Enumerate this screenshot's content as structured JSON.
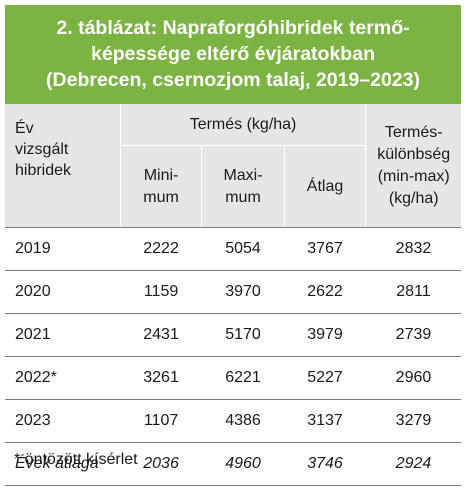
{
  "title": {
    "line1": "2. táblázat: Napraforgóhibridek termő-",
    "line2": "képessége eltérő évjáratokban",
    "line3": "(Debrecen, csernozjom talaj, 2019–2023)"
  },
  "header": {
    "col0": [
      "Év",
      "vizsgált",
      "hibridek"
    ],
    "group": "Termés (kg/ha)",
    "min": [
      "Mini-",
      "mum"
    ],
    "max": [
      "Maxi-",
      "mum"
    ],
    "avg": "Átlag",
    "diff": [
      "Termés-",
      "különbség",
      "(min-max)",
      "(kg/ha)"
    ]
  },
  "rows": [
    {
      "year": "2019",
      "min": "2222",
      "max": "5054",
      "avg": "3767",
      "diff": "2832"
    },
    {
      "year": "2020",
      "min": "1159",
      "max": "3970",
      "avg": "2622",
      "diff": "2811"
    },
    {
      "year": "2021",
      "min": "2431",
      "max": "5170",
      "avg": "3979",
      "diff": "2739"
    },
    {
      "year": "2022*",
      "min": "3261",
      "max": "6221",
      "avg": "5227",
      "diff": "2960"
    },
    {
      "year": "2023",
      "min": "1107",
      "max": "4386",
      "avg": "3137",
      "diff": "3279"
    }
  ],
  "average_row": {
    "label": "Évek átlaga",
    "min": "2036",
    "max": "4960",
    "avg": "3746",
    "diff": "2924"
  },
  "footnote": "* öntözött kísérlet"
}
